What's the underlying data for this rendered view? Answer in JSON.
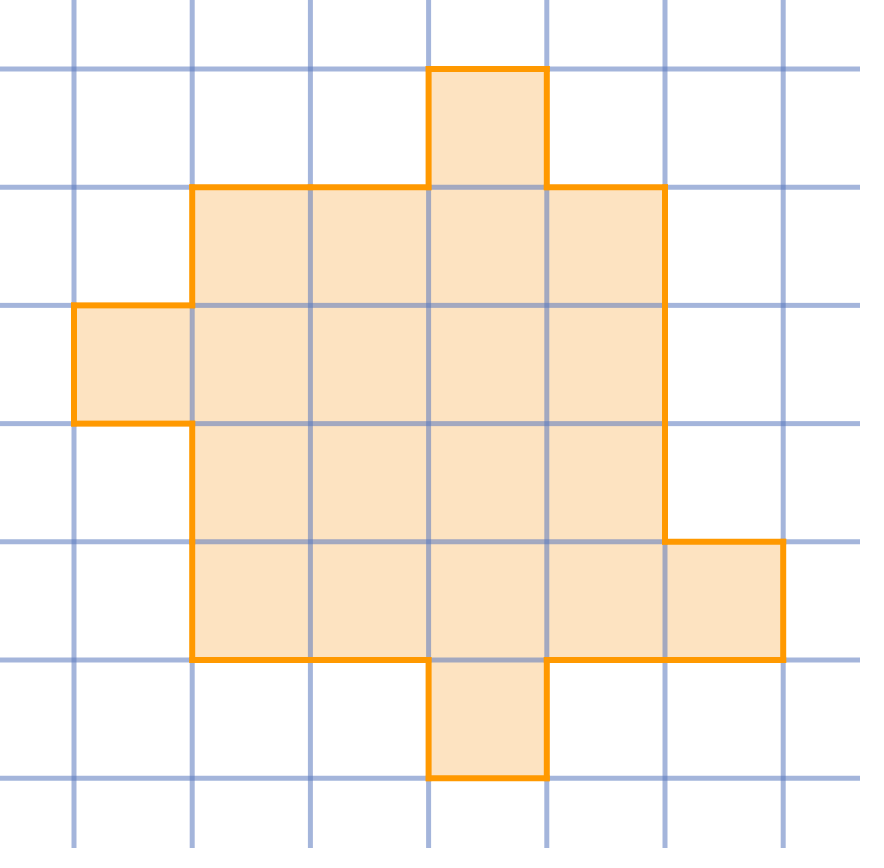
{
  "diagram": {
    "grid": {
      "rows": 6,
      "cols": 6
    },
    "cells": [
      [
        0,
        3
      ],
      [
        1,
        1
      ],
      [
        1,
        2
      ],
      [
        1,
        3
      ],
      [
        1,
        4
      ],
      [
        2,
        0
      ],
      [
        2,
        1
      ],
      [
        2,
        2
      ],
      [
        2,
        3
      ],
      [
        2,
        4
      ],
      [
        3,
        1
      ],
      [
        3,
        2
      ],
      [
        3,
        3
      ],
      [
        3,
        4
      ],
      [
        4,
        1
      ],
      [
        4,
        2
      ],
      [
        4,
        3
      ],
      [
        4,
        4
      ],
      [
        4,
        5
      ],
      [
        5,
        3
      ]
    ],
    "colors": {
      "grid_line": "#5a78be",
      "fill": "#fde3c1",
      "outline": "#ff9900",
      "background": "#ffffff"
    }
  }
}
